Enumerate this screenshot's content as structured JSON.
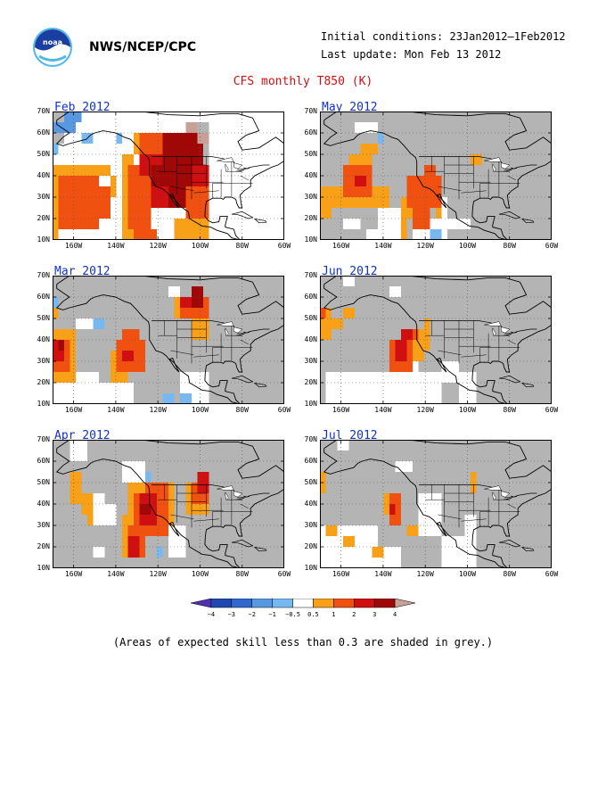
{
  "header": {
    "org": "NWS/NCEP/CPC",
    "initial_conditions": "Initial conditions: 23Jan2012–1Feb2012",
    "last_update": "Last update: Mon Feb 13 2012",
    "title": "CFS monthly T850 (K)"
  },
  "axes": {
    "lat_labels": [
      "70N",
      "60N",
      "50N",
      "40N",
      "30N",
      "20N",
      "10N"
    ],
    "lon_labels": [
      "160W",
      "140W",
      "120W",
      "100W",
      "80W",
      "60W"
    ]
  },
  "colors": {
    "grey": "#b4b4b4",
    "white": "#ffffff",
    "p05": "#f8a018",
    "p1": "#f05010",
    "p2": "#d01010",
    "p3": "#a00808",
    "p4": "#c8a098",
    "n05": "#78b8f0",
    "n1": "#5898e0",
    "n2": "#3068d0",
    "n3": "#2048b0",
    "n4": "#5030b0"
  },
  "panels": [
    {
      "id": "feb",
      "title": "Feb 2012",
      "grid_spec": {
        "grey": [
          [
            0,
            0,
            4,
            2
          ],
          [
            0,
            2,
            2,
            1
          ],
          [
            23,
            1,
            4,
            2
          ],
          [
            25,
            3,
            2,
            2
          ]
        ],
        "n05": [
          [
            5,
            2,
            2,
            1
          ],
          [
            11,
            2,
            1,
            1
          ],
          [
            5,
            8,
            1,
            1
          ],
          [
            0,
            3,
            1,
            1
          ]
        ],
        "n1": [
          [
            2,
            0,
            2,
            2
          ],
          [
            0,
            1,
            2,
            1
          ],
          [
            4,
            0,
            1,
            1
          ]
        ],
        "p05": [
          [
            0,
            5,
            10,
            1
          ],
          [
            0,
            6,
            1,
            6
          ],
          [
            10,
            6,
            1,
            2
          ],
          [
            12,
            4,
            2,
            4
          ],
          [
            12,
            8,
            1,
            4
          ],
          [
            14,
            2,
            2,
            2
          ],
          [
            21,
            10,
            6,
            2
          ],
          [
            13,
            9,
            1,
            3
          ]
        ],
        "p1": [
          [
            1,
            6,
            7,
            5
          ],
          [
            8,
            7,
            2,
            3
          ],
          [
            13,
            5,
            4,
            6
          ],
          [
            15,
            2,
            5,
            3
          ],
          [
            17,
            5,
            6,
            4
          ],
          [
            23,
            7,
            4,
            3
          ],
          [
            14,
            11,
            4,
            1
          ]
        ],
        "p2": [
          [
            15,
            4,
            10,
            2
          ],
          [
            17,
            6,
            6,
            3
          ],
          [
            20,
            3,
            5,
            2
          ],
          [
            23,
            5,
            4,
            2
          ]
        ],
        "p3": [
          [
            19,
            2,
            7,
            3
          ],
          [
            17,
            5,
            7,
            2
          ],
          [
            20,
            7,
            3,
            2
          ],
          [
            23,
            4,
            3,
            1
          ]
        ],
        "p4": [
          [
            23,
            1,
            2,
            1
          ],
          [
            25,
            2,
            2,
            1
          ]
        ]
      }
    },
    {
      "id": "may",
      "title": "May 2012",
      "grid_spec": {
        "grey": [
          [
            0,
            0,
            40,
            12
          ]
        ],
        "white": [
          [
            6,
            1,
            4,
            1
          ],
          [
            8,
            11,
            2,
            1
          ],
          [
            10,
            9,
            4,
            3
          ],
          [
            16,
            10,
            6,
            2
          ],
          [
            22,
            10,
            4,
            1
          ],
          [
            20,
            8,
            2,
            2
          ],
          [
            4,
            10,
            3,
            1
          ]
        ],
        "n05": [
          [
            10,
            2,
            1,
            1
          ],
          [
            18,
            10,
            1,
            1
          ],
          [
            19,
            11,
            2,
            1
          ]
        ],
        "p05": [
          [
            0,
            7,
            12,
            2
          ],
          [
            0,
            9,
            2,
            1
          ],
          [
            7,
            3,
            3,
            1
          ],
          [
            5,
            4,
            4,
            1
          ],
          [
            15,
            6,
            2,
            4
          ],
          [
            14,
            8,
            1,
            4
          ],
          [
            20,
            7,
            1,
            3
          ],
          [
            26,
            4,
            2,
            1
          ]
        ],
        "p1": [
          [
            4,
            5,
            5,
            3
          ],
          [
            15,
            6,
            6,
            3
          ],
          [
            16,
            9,
            3,
            2
          ],
          [
            18,
            5,
            2,
            1
          ]
        ],
        "p2": [
          [
            6,
            6,
            2,
            1
          ]
        ]
      }
    },
    {
      "id": "mar",
      "title": "Mar 2012",
      "grid_spec": {
        "grey": [
          [
            0,
            0,
            40,
            12
          ]
        ],
        "white": [
          [
            0,
            9,
            8,
            3
          ],
          [
            8,
            10,
            6,
            2
          ],
          [
            4,
            4,
            4,
            1
          ],
          [
            14,
            8,
            2,
            1
          ],
          [
            22,
            9,
            5,
            3
          ],
          [
            20,
            1,
            2,
            1
          ]
        ],
        "n05": [
          [
            7,
            4,
            2,
            1
          ],
          [
            0,
            2,
            1,
            1
          ],
          [
            19,
            11,
            2,
            1
          ],
          [
            22,
            11,
            2,
            1
          ]
        ],
        "p05": [
          [
            0,
            3,
            1,
            1
          ],
          [
            0,
            5,
            4,
            5
          ],
          [
            10,
            7,
            3,
            3
          ],
          [
            12,
            6,
            2,
            2
          ],
          [
            21,
            2,
            6,
            2
          ],
          [
            24,
            4,
            3,
            2
          ]
        ],
        "p1": [
          [
            0,
            6,
            3,
            3
          ],
          [
            11,
            6,
            5,
            3
          ],
          [
            12,
            5,
            3,
            1
          ],
          [
            22,
            2,
            5,
            2
          ]
        ],
        "p2": [
          [
            0,
            6,
            2,
            2
          ],
          [
            12,
            7,
            2,
            1
          ],
          [
            22,
            2,
            3,
            1
          ]
        ],
        "p3": [
          [
            1,
            6,
            1,
            1
          ],
          [
            24,
            1,
            2,
            2
          ]
        ]
      }
    },
    {
      "id": "jun",
      "title": "Jun 2012",
      "grid_spec": {
        "grey": [
          [
            0,
            0,
            40,
            12
          ]
        ],
        "white": [
          [
            1,
            9,
            12,
            3
          ],
          [
            13,
            7,
            4,
            5
          ],
          [
            17,
            9,
            4,
            3
          ],
          [
            21,
            8,
            3,
            2
          ],
          [
            24,
            9,
            3,
            3
          ],
          [
            4,
            0,
            2,
            1
          ],
          [
            12,
            1,
            2,
            1
          ]
        ],
        "p05": [
          [
            0,
            3,
            2,
            3
          ],
          [
            2,
            4,
            2,
            1
          ],
          [
            4,
            3,
            2,
            1
          ],
          [
            14,
            5,
            4,
            3
          ],
          [
            18,
            4,
            1,
            3
          ]
        ],
        "p1": [
          [
            0,
            3,
            1,
            1
          ],
          [
            12,
            6,
            4,
            3
          ],
          [
            14,
            5,
            3,
            1
          ],
          [
            15,
            8,
            1,
            1
          ]
        ],
        "p2": [
          [
            13,
            6,
            2,
            2
          ],
          [
            14,
            5,
            2,
            1
          ]
        ]
      }
    },
    {
      "id": "apr",
      "title": "Apr 2012",
      "grid_spec": {
        "grey": [
          [
            0,
            0,
            40,
            12
          ]
        ],
        "white": [
          [
            3,
            0,
            3,
            2
          ],
          [
            6,
            5,
            3,
            3
          ],
          [
            9,
            6,
            2,
            2
          ],
          [
            12,
            2,
            4,
            2
          ],
          [
            14,
            9,
            2,
            2
          ],
          [
            20,
            8,
            3,
            3
          ],
          [
            7,
            10,
            2,
            1
          ]
        ],
        "n05": [
          [
            18,
            10,
            1,
            1
          ],
          [
            16,
            3,
            1,
            1
          ]
        ],
        "p05": [
          [
            3,
            3,
            2,
            3
          ],
          [
            5,
            5,
            2,
            2
          ],
          [
            6,
            7,
            1,
            1
          ],
          [
            13,
            4,
            8,
            4
          ],
          [
            12,
            7,
            2,
            4
          ],
          [
            23,
            4,
            4,
            3
          ]
        ],
        "p1": [
          [
            14,
            5,
            6,
            4
          ],
          [
            13,
            8,
            3,
            3
          ],
          [
            16,
            4,
            4,
            2
          ],
          [
            24,
            4,
            3,
            2
          ]
        ],
        "p2": [
          [
            15,
            5,
            3,
            3
          ],
          [
            13,
            9,
            2,
            2
          ],
          [
            25,
            3,
            2,
            2
          ]
        ],
        "p3": [
          [
            15,
            6,
            2,
            1
          ]
        ]
      }
    },
    {
      "id": "jul",
      "title": "Jul 2012",
      "grid_spec": {
        "grey": [
          [
            0,
            0,
            40,
            12
          ]
        ],
        "white": [
          [
            0,
            8,
            10,
            4
          ],
          [
            10,
            10,
            4,
            2
          ],
          [
            17,
            5,
            4,
            4
          ],
          [
            21,
            9,
            4,
            3
          ],
          [
            25,
            7,
            2,
            5
          ],
          [
            3,
            0,
            2,
            1
          ],
          [
            13,
            2,
            3,
            1
          ]
        ],
        "p05": [
          [
            0,
            3,
            1,
            2
          ],
          [
            1,
            8,
            2,
            1
          ],
          [
            4,
            9,
            2,
            1
          ],
          [
            9,
            10,
            2,
            1
          ],
          [
            11,
            5,
            2,
            2
          ],
          [
            12,
            7,
            1,
            1
          ],
          [
            15,
            8,
            2,
            1
          ],
          [
            26,
            3,
            1,
            2
          ]
        ],
        "p1": [
          [
            12,
            5,
            2,
            3
          ],
          [
            13,
            6,
            1,
            1
          ]
        ],
        "p2": [
          [
            12,
            6,
            1,
            1
          ]
        ]
      }
    }
  ],
  "legend": {
    "labels": [
      "−4",
      "−3",
      "−2",
      "−1",
      "−0.5",
      "0.5",
      "1",
      "2",
      "3",
      "4"
    ],
    "colors": [
      "#5030b0",
      "#2048b0",
      "#3068d0",
      "#5898e0",
      "#78b8f0",
      "#ffffff",
      "#f8a018",
      "#f05010",
      "#d01010",
      "#a00808",
      "#c8a098"
    ]
  },
  "note": "(Areas of expected skill less than 0.3 are shaded in grey.)"
}
